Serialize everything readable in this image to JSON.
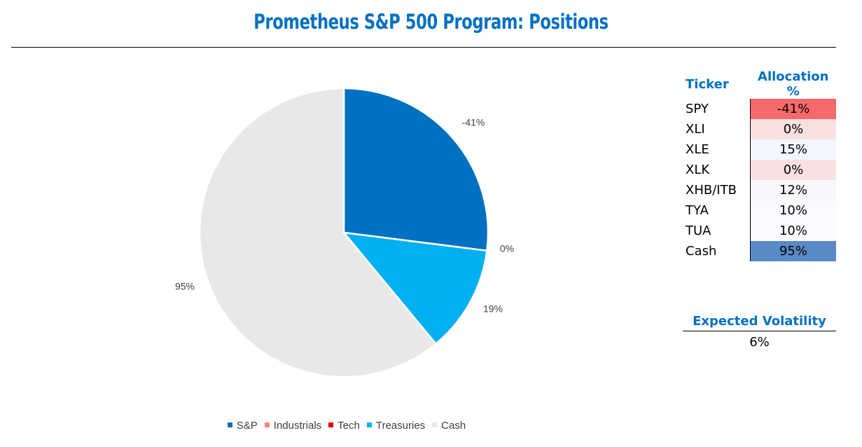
{
  "header": {
    "title": "Prometheus S&P 500 Program: Positions"
  },
  "chart_data": {
    "type": "pie",
    "slices": [
      {
        "name": "S&P",
        "value": 27,
        "label": "-41%",
        "color": "#0070c0"
      },
      {
        "name": "Industrials",
        "value": 0,
        "label": "0%",
        "color": "#f4837d"
      },
      {
        "name": "Tech",
        "value": 0,
        "label": "",
        "color": "#e00000"
      },
      {
        "name": "Treasuries",
        "value": 12,
        "label": "19%",
        "color": "#00b0f0"
      },
      {
        "name": "Cash",
        "value": 61,
        "label": "95%",
        "color": "#e8e8e8"
      }
    ],
    "legend_position": "bottom"
  },
  "allocation_table": {
    "headers": [
      "Ticker",
      "Allocation %"
    ],
    "rows": [
      {
        "ticker": "SPY",
        "allocation": "-41%",
        "color": "#f8696b"
      },
      {
        "ticker": "XLI",
        "allocation": "0%",
        "color": "#fbe0e2"
      },
      {
        "ticker": "XLE",
        "allocation": "15%",
        "color": "#f3f6fc"
      },
      {
        "ticker": "XLK",
        "allocation": "0%",
        "color": "#fbe0e2"
      },
      {
        "ticker": "XHB/ITB",
        "allocation": "12%",
        "color": "#f7f8fd"
      },
      {
        "ticker": "TYA",
        "allocation": "10%",
        "color": "#fafbfe"
      },
      {
        "ticker": "TUA",
        "allocation": "10%",
        "color": "#fafbfe"
      },
      {
        "ticker": "Cash",
        "allocation": "95%",
        "color": "#5a8ac6"
      }
    ]
  },
  "volatility": {
    "label": "Expected Volatility",
    "value": "6%"
  }
}
